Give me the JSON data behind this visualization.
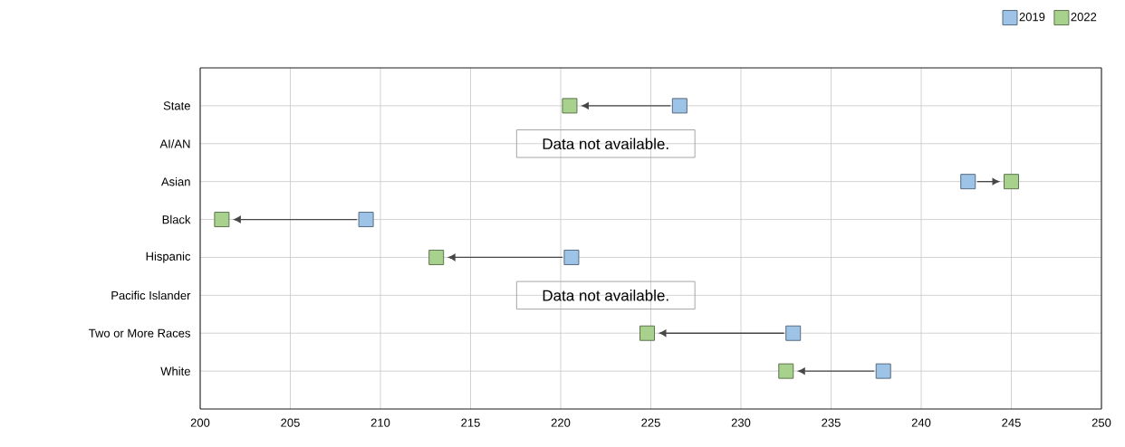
{
  "chart_data": {
    "type": "scatter",
    "orientation": "horizontal",
    "categories": [
      "State",
      "AI/AN",
      "Asian",
      "Black",
      "Hispanic",
      "Pacific Islander",
      "Two or More Races",
      "White"
    ],
    "series": [
      {
        "name": "2019",
        "color": "#9dc3e6",
        "values": [
          226.6,
          null,
          242.6,
          209.2,
          220.6,
          null,
          232.9,
          237.9
        ]
      },
      {
        "name": "2022",
        "color": "#a9d18e",
        "values": [
          220.5,
          null,
          245.0,
          201.2,
          213.1,
          null,
          224.8,
          232.5
        ]
      }
    ],
    "xlim": [
      200,
      250
    ],
    "xticks": [
      200,
      205,
      210,
      215,
      220,
      225,
      230,
      235,
      240,
      245,
      250
    ],
    "grid": true,
    "legend": "top right",
    "marker": "square",
    "annotations": [
      "Data not available.",
      "Data not available."
    ]
  }
}
